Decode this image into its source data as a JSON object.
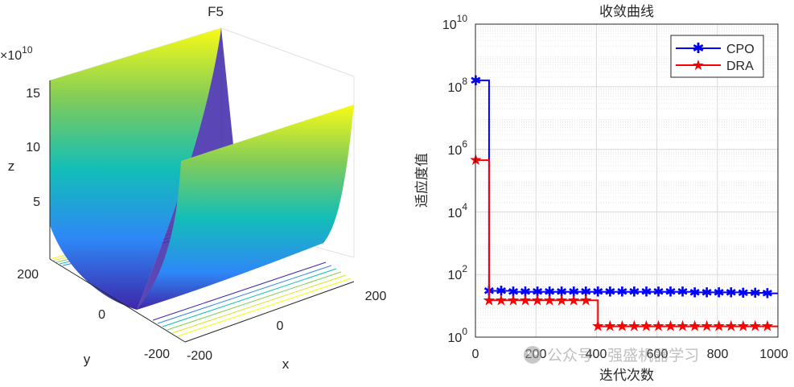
{
  "surface_plot": {
    "title": "F5",
    "multiplier_base": "×10",
    "multiplier_exp": "10",
    "zlabel": "z",
    "xlabel": "x",
    "ylabel": "y",
    "z_ticks": [
      "5",
      "10",
      "15"
    ],
    "x_ticks": [
      "-200",
      "0",
      "200"
    ],
    "y_ticks": [
      "-200",
      "0",
      "200"
    ],
    "colormap": [
      "#3e26a8",
      "#2e87f7",
      "#13beb7",
      "#81cc59",
      "#f9fb15"
    ]
  },
  "chart_data": [
    {
      "type": "surface",
      "title": "F5",
      "xlabel": "x",
      "ylabel": "y",
      "zlabel": "z",
      "xlim": [
        -200,
        200
      ],
      "ylim": [
        -200,
        200
      ],
      "zlim": [
        0,
        160000000000.0
      ],
      "description": "U-shaped valley along y axis, z rising toward x = ±200, contour lines on base plane"
    },
    {
      "type": "line",
      "title": "收敛曲线",
      "xlabel": "迭代次数",
      "ylabel": "适应度值",
      "yscale": "log",
      "xlim": [
        0,
        1000
      ],
      "ylim": [
        1,
        10000000000.0
      ],
      "grid": true,
      "legend_position": "top-right",
      "x_ticks": [
        0,
        200,
        400,
        600,
        800,
        1000
      ],
      "y_ticks": [
        1,
        100,
        10000,
        1000000,
        100000000,
        10000000000
      ],
      "series": [
        {
          "name": "CPO",
          "color": "#0000ff",
          "marker": "asterisk",
          "x": [
            1,
            45,
            85,
            125,
            165,
            205,
            245,
            285,
            325,
            365,
            405,
            445,
            485,
            525,
            565,
            605,
            645,
            685,
            725,
            765,
            805,
            845,
            885,
            925,
            965
          ],
          "y": [
            160000000,
            30,
            30,
            28,
            28,
            28,
            28,
            28,
            28,
            28,
            28,
            28,
            28,
            28,
            28,
            28,
            28,
            28,
            27,
            27,
            27,
            27,
            26,
            26,
            25
          ]
        },
        {
          "name": "DRA",
          "color": "#ff0000",
          "marker": "pentagram",
          "x": [
            1,
            45,
            85,
            125,
            165,
            205,
            245,
            285,
            325,
            365,
            405,
            445,
            485,
            525,
            565,
            605,
            645,
            685,
            725,
            765,
            805,
            845,
            885,
            925,
            965
          ],
          "y": [
            450000,
            15,
            15,
            15,
            15,
            15,
            15,
            15,
            15,
            15,
            2.2,
            2.2,
            2.2,
            2.2,
            2.2,
            2.2,
            2.2,
            2.2,
            2.2,
            2.2,
            2.2,
            2.2,
            2.2,
            2.2,
            2.2
          ]
        }
      ]
    }
  ],
  "convergence_plot": {
    "title": "收敛曲线",
    "xlabel": "迭代次数",
    "ylabel": "适应度值",
    "x_ticks": [
      "0",
      "200",
      "400",
      "600",
      "800",
      "1000"
    ],
    "y_tick_base": "10",
    "y_tick_exps": [
      "0",
      "2",
      "4",
      "6",
      "8",
      "10"
    ],
    "legend": [
      "CPO",
      "DRA"
    ]
  },
  "watermark": "公众号 · 强盛机器学习"
}
